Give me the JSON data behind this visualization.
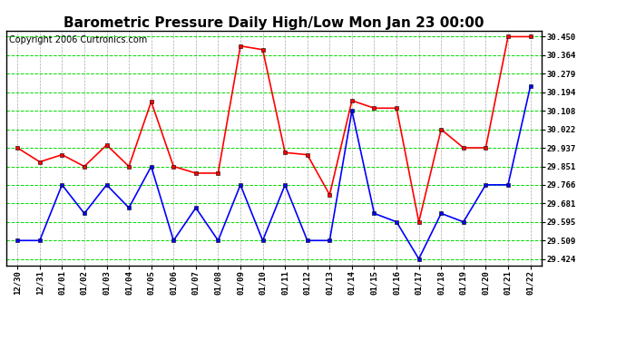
{
  "title": "Barometric Pressure Daily High/Low Mon Jan 23 00:00",
  "copyright": "Copyright 2006 Curtronics.com",
  "x_labels": [
    "12/30",
    "12/31",
    "01/01",
    "01/02",
    "01/03",
    "01/04",
    "01/05",
    "01/06",
    "01/07",
    "01/08",
    "01/09",
    "01/10",
    "01/11",
    "01/12",
    "01/13",
    "01/14",
    "01/15",
    "01/16",
    "01/17",
    "01/18",
    "01/19",
    "01/20",
    "01/21",
    "01/22"
  ],
  "high_values": [
    29.937,
    29.872,
    29.905,
    29.851,
    29.95,
    29.851,
    30.15,
    29.851,
    29.82,
    29.82,
    30.407,
    30.39,
    29.915,
    29.905,
    29.72,
    30.155,
    30.12,
    30.12,
    29.595,
    30.022,
    29.937,
    29.937,
    30.45,
    30.45
  ],
  "low_values": [
    29.509,
    29.509,
    29.766,
    29.634,
    29.766,
    29.66,
    29.851,
    29.509,
    29.66,
    29.509,
    29.766,
    29.509,
    29.766,
    29.509,
    29.509,
    30.108,
    29.634,
    29.595,
    29.424,
    29.634,
    29.595,
    29.766,
    29.766,
    30.22
  ],
  "y_ticks": [
    29.424,
    29.509,
    29.595,
    29.681,
    29.766,
    29.851,
    29.937,
    30.022,
    30.108,
    30.194,
    30.279,
    30.364,
    30.45
  ],
  "y_min": 29.395,
  "y_max": 30.478,
  "high_color": "#ff0000",
  "low_color": "#0000ff",
  "bg_color": "#ffffff",
  "grid_h_color": "#00dd00",
  "grid_v_color": "#aaaaaa",
  "title_fontsize": 11,
  "copyright_fontsize": 7
}
